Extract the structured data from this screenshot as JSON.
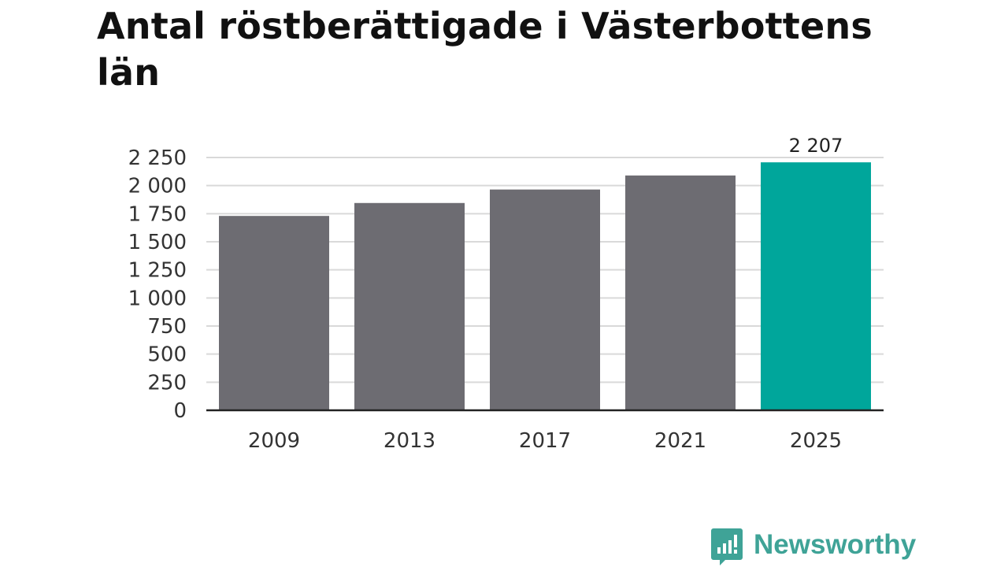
{
  "title": "Antal röstberättigade i Västerbottens län",
  "chart_data": {
    "type": "bar",
    "categories": [
      "2009",
      "2013",
      "2017",
      "2021",
      "2025"
    ],
    "values": [
      1730,
      1845,
      1965,
      2090,
      2207
    ],
    "ylim": [
      0,
      2250
    ],
    "yticks": [
      0,
      250,
      500,
      750,
      1000,
      1250,
      1500,
      1750,
      2000,
      2250
    ],
    "ytick_labels": [
      "0",
      "250",
      "500",
      "750",
      "1 000",
      "1 250",
      "1 500",
      "1 750",
      "2 000",
      "2 250"
    ],
    "data_labels": [
      "",
      "",
      "",
      "",
      "2 207"
    ],
    "grid": true,
    "colors": {
      "default_bar": "#6d6c72",
      "highlight_bar": "#00a69b",
      "gridline": "#d9d9d9",
      "axis": "#222222"
    },
    "highlight_index": 4
  },
  "brand": {
    "name": "Newsworthy",
    "icon": "bar-chart-speech-bubble-icon",
    "color": "#3fa397"
  }
}
